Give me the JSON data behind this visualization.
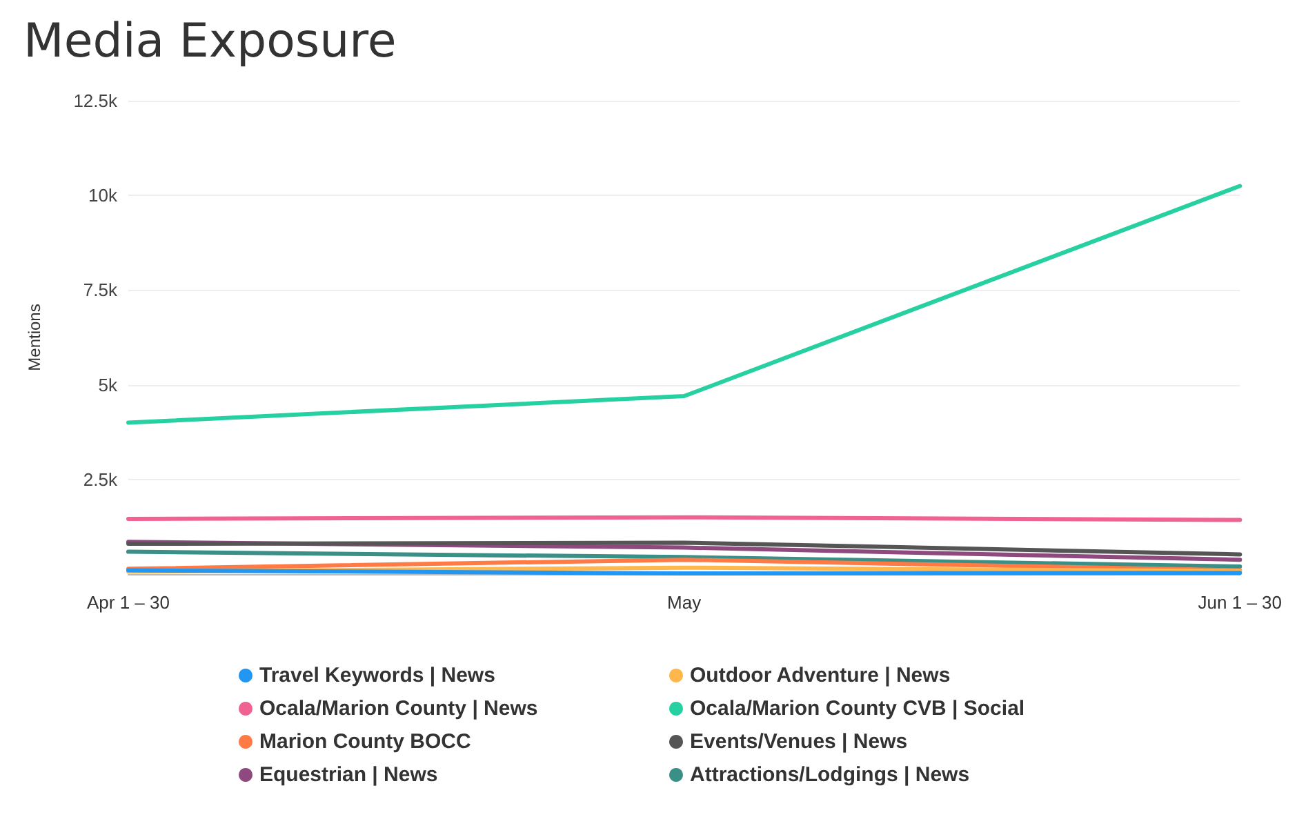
{
  "chart_data": {
    "type": "line",
    "title": "Media Exposure",
    "ylabel": "Mentions",
    "categories": [
      "Apr 1 – 30",
      "May",
      "Jun 1 – 30"
    ],
    "ylim": [
      0,
      12500
    ],
    "yticks": [
      {
        "value": 0,
        "label": null
      },
      {
        "value": 2500,
        "label": "2.5k"
      },
      {
        "value": 5000,
        "label": "5k"
      },
      {
        "value": 7500,
        "label": "7.5k"
      },
      {
        "value": 10000,
        "label": "10k"
      },
      {
        "value": 12500,
        "label": "12.5k"
      }
    ],
    "grid": "y",
    "legend": "bottom",
    "marker": "none",
    "line_style": "solid",
    "series": [
      {
        "name": "Travel Keywords | News",
        "color": "#2196f3",
        "values": [
          100,
          20,
          30
        ]
      },
      {
        "name": "Outdoor Adventure | News",
        "color": "#ffb74d",
        "values": [
          70,
          170,
          80
        ]
      },
      {
        "name": "Ocala/Marion County | News",
        "color": "#f06292",
        "values": [
          1460,
          1500,
          1430
        ]
      },
      {
        "name": "Ocala/Marion County CVB | Social",
        "color": "#26d0a0",
        "values": [
          4000,
          4700,
          10250
        ]
      },
      {
        "name": "Marion County BOCC",
        "color": "#ff7a45",
        "values": [
          140,
          380,
          100
        ]
      },
      {
        "name": "Events/Venues | News",
        "color": "#555555",
        "values": [
          800,
          830,
          520
        ]
      },
      {
        "name": "Equestrian | News",
        "color": "#8e4a7e",
        "values": [
          850,
          700,
          380
        ]
      },
      {
        "name": "Attractions/Lodgings | News",
        "color": "#3a8f87",
        "values": [
          590,
          450,
          200
        ]
      }
    ]
  }
}
